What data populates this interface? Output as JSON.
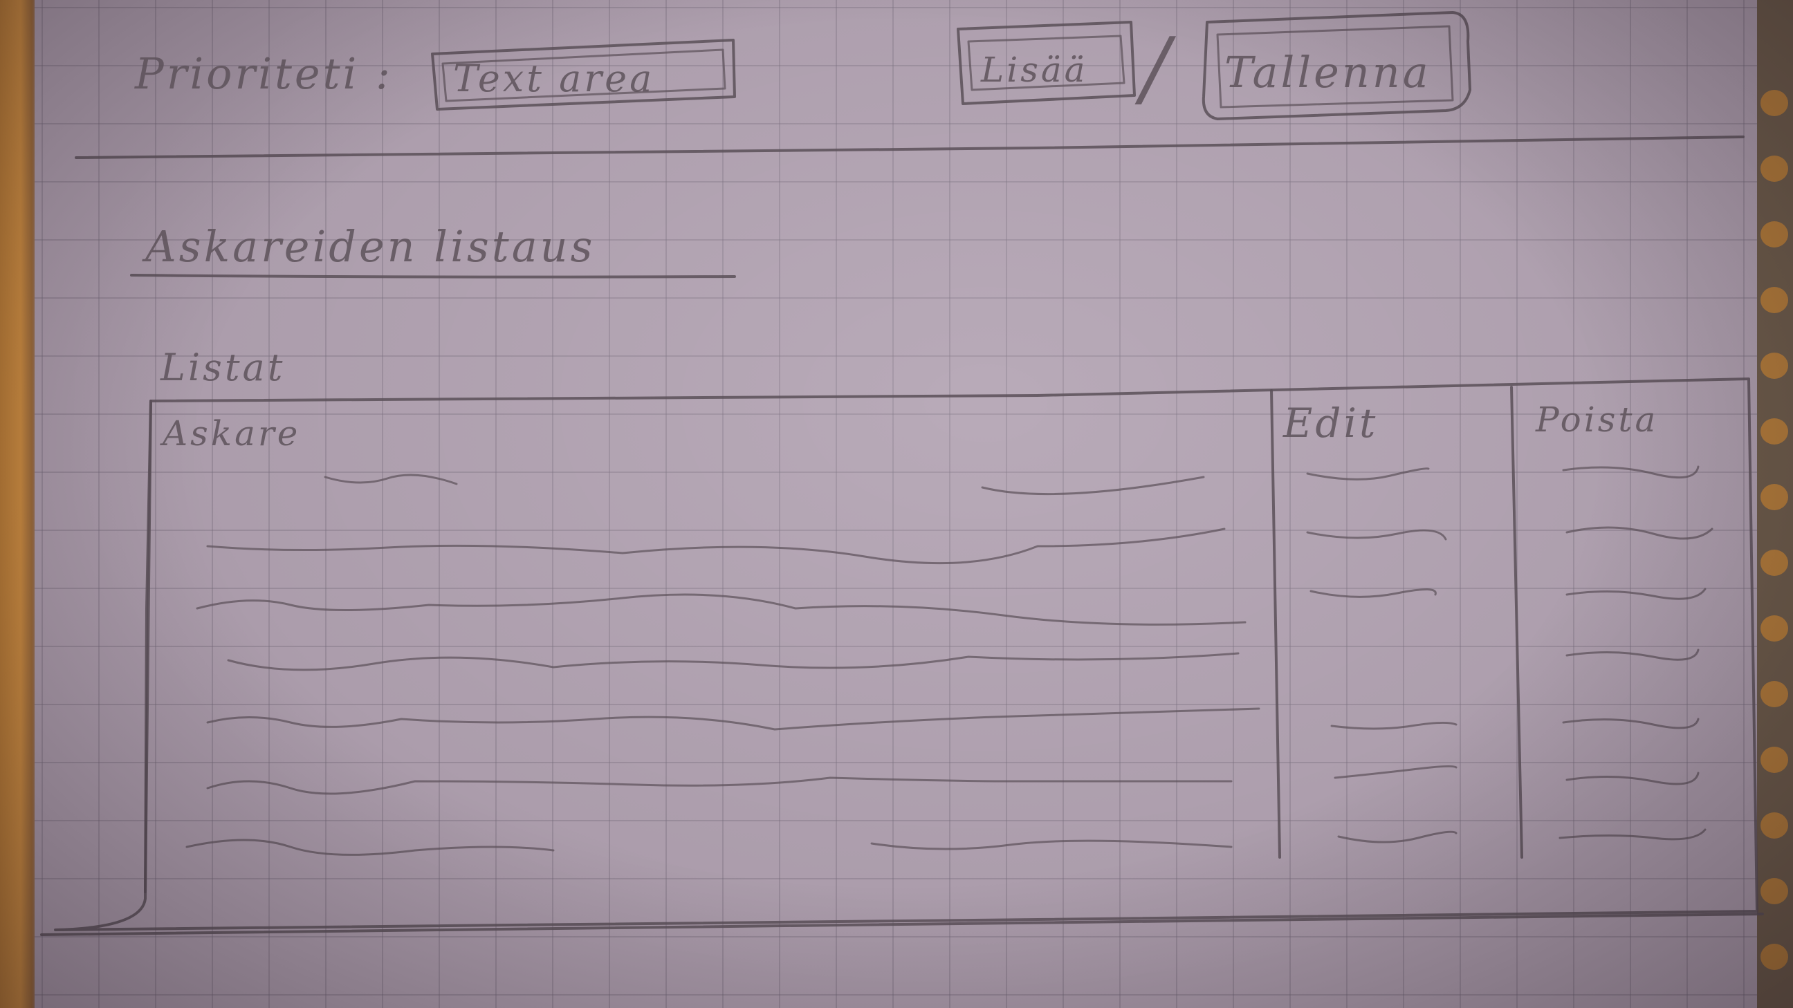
{
  "header": {
    "label": "Prioriteti :",
    "text_area_label": "Text area",
    "button_1_label": "Lisää",
    "separator": "/",
    "button_2_label": "Tallenna"
  },
  "section": {
    "title": "Askareiden listaus"
  },
  "table": {
    "caption": "Listat",
    "columns": [
      "Askare",
      "Edit",
      "Poista"
    ]
  }
}
